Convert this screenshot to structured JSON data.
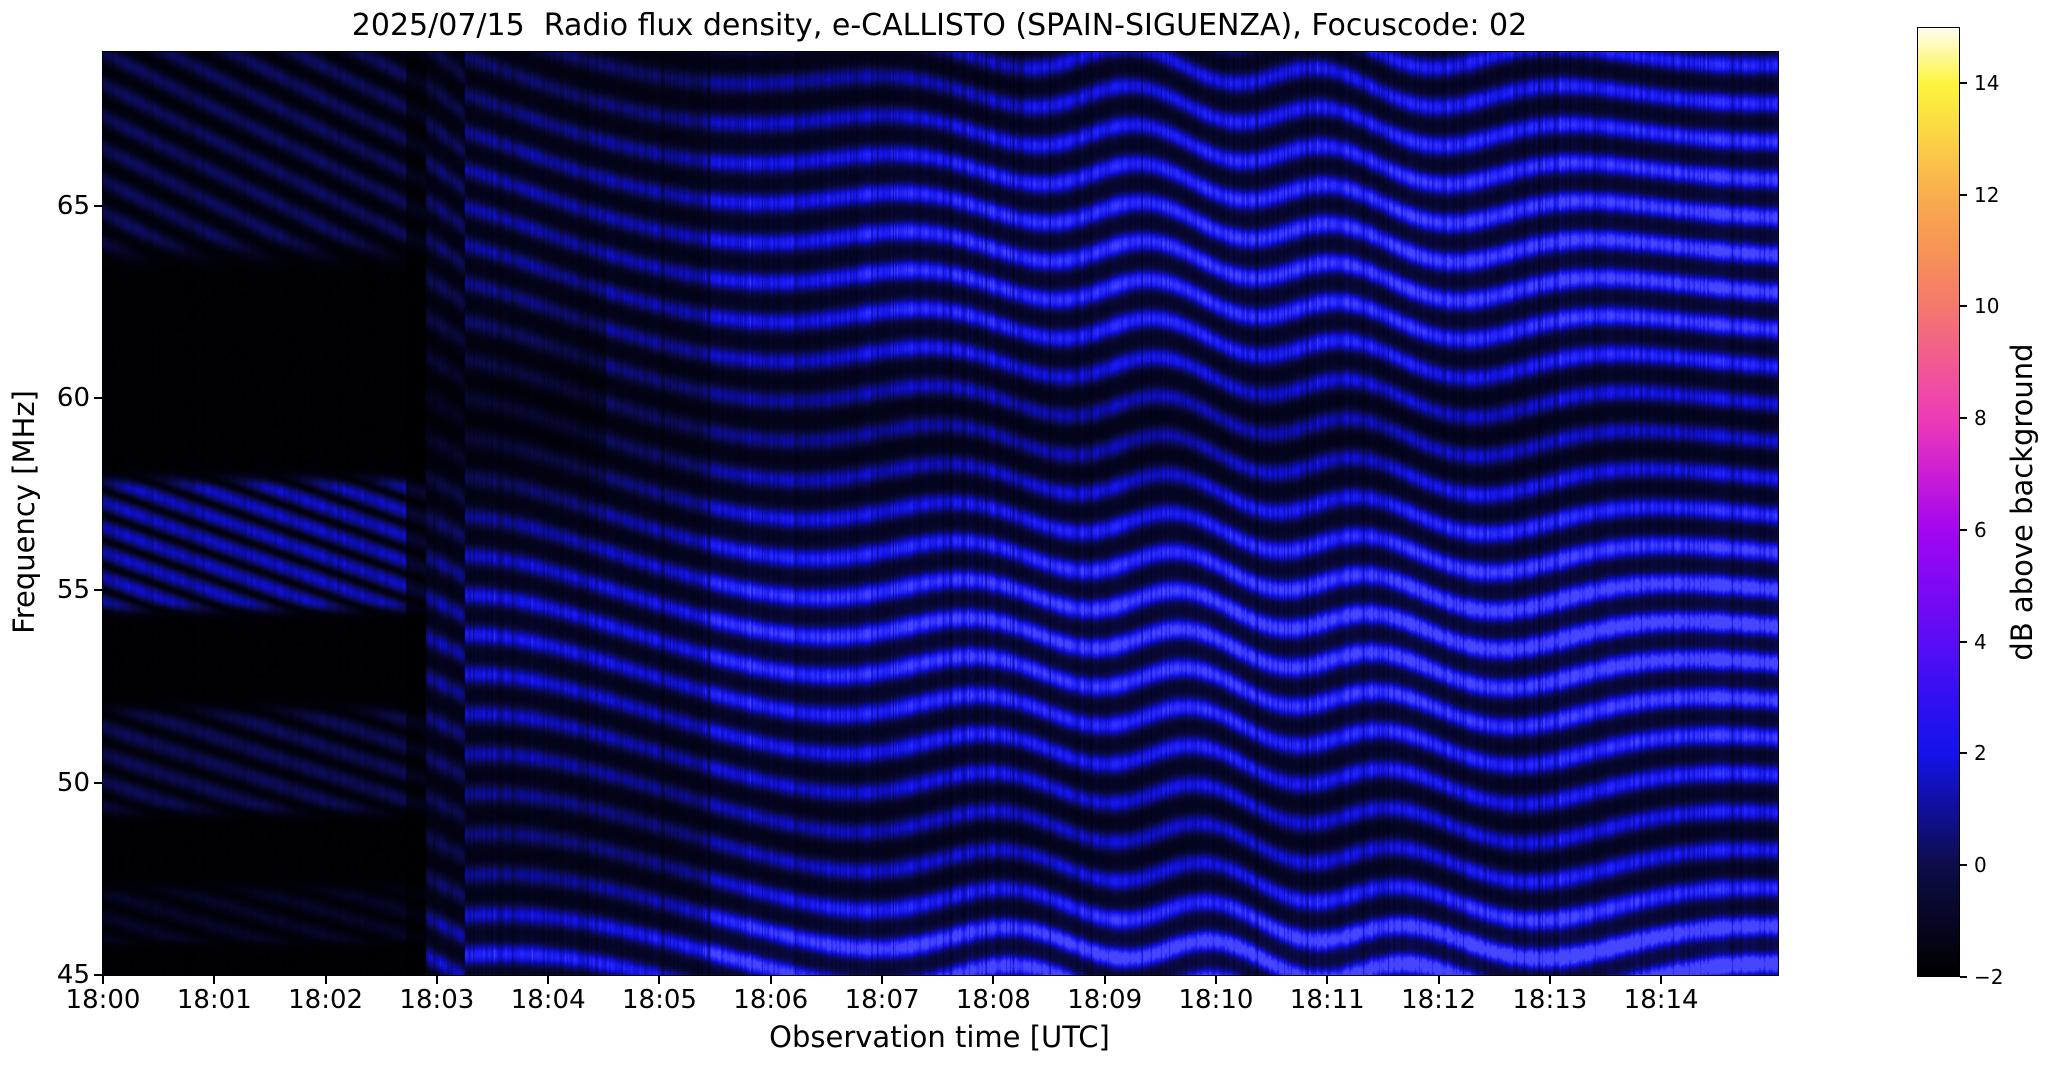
{
  "figure": {
    "title": "2025/07/15  Radio flux density, e-CALLISTO (SPAIN-SIGUENZA), Focuscode: 02",
    "background": "#ffffff"
  },
  "chart_data": {
    "type": "heatmap",
    "title": "2025/07/15  Radio flux density, e-CALLISTO (SPAIN-SIGUENZA), Focuscode: 02",
    "xlabel": "Observation time [UTC]",
    "ylabel": "Frequency [MHz]",
    "x_ticks": [
      "18:00",
      "18:01",
      "18:02",
      "18:03",
      "18:04",
      "18:05",
      "18:06",
      "18:07",
      "18:08",
      "18:09",
      "18:10",
      "18:11",
      "18:12",
      "18:13",
      "18:14"
    ],
    "x_total_minutes": 15.05,
    "y_ticks": [
      65,
      60,
      55,
      50,
      45
    ],
    "ylim": [
      45,
      69
    ],
    "grid": false,
    "colorbar": {
      "label": "dB above background",
      "ticks": [
        14,
        12,
        10,
        8,
        6,
        4,
        2,
        0,
        -2
      ],
      "range": [
        -2,
        15
      ],
      "colormap": "gnuplot2",
      "stops": [
        {
          "v": -2,
          "c": "#000000"
        },
        {
          "v": -1,
          "c": "#060624"
        },
        {
          "v": 0,
          "c": "#0d0d4a"
        },
        {
          "v": 1,
          "c": "#10109a"
        },
        {
          "v": 2,
          "c": "#1413ea"
        },
        {
          "v": 3,
          "c": "#330ff2"
        },
        {
          "v": 4,
          "c": "#5a0df5"
        },
        {
          "v": 5,
          "c": "#7f08f4"
        },
        {
          "v": 6,
          "c": "#a306f0"
        },
        {
          "v": 7,
          "c": "#cb1dd6"
        },
        {
          "v": 8,
          "c": "#ee3bb5"
        },
        {
          "v": 9,
          "c": "#f15a92"
        },
        {
          "v": 10,
          "c": "#f4786e"
        },
        {
          "v": 11,
          "c": "#f79356"
        },
        {
          "v": 12,
          "c": "#f9ad4e"
        },
        {
          "v": 13,
          "c": "#fbd245"
        },
        {
          "v": 14,
          "c": "#fcf53c"
        },
        {
          "v": 15,
          "c": "#fffdf0"
        }
      ]
    },
    "plot_colormap": [
      {
        "v": -2,
        "c": "#000000"
      },
      {
        "v": -1,
        "c": "#04041e"
      },
      {
        "v": 0,
        "c": "#0b0b47"
      },
      {
        "v": 1,
        "c": "#0b0b9e"
      },
      {
        "v": 2,
        "c": "#1414e8"
      },
      {
        "v": 3,
        "c": "#2c2cff"
      },
      {
        "v": 3.6,
        "c": "#4646ff"
      }
    ],
    "spectrogram": {
      "description": "Dynamic radio spectrum: dark calibration-like segment with banded diagonal fringes before ~18:03, then bright blue wavy ripple bands (~0.5-3 dB) drifting across 45-69 MHz until 18:15.",
      "value_range_db": [
        -2,
        3
      ],
      "ripple_spacing_px": 38.5,
      "segments": [
        {
          "from_min": 0.0,
          "to_min": 2.72,
          "style": "dark-banded"
        },
        {
          "from_min": 2.72,
          "to_min": 2.9,
          "style": "gap"
        },
        {
          "from_min": 2.9,
          "to_min": 3.25,
          "style": "transition"
        },
        {
          "from_min": 3.25,
          "to_min": 5.45,
          "style": "medium-ripples"
        },
        {
          "from_min": 5.45,
          "to_min": 15.05,
          "style": "bright-ripples"
        }
      ],
      "left_bands_mhz": [
        [
          63.9,
          69.0
        ],
        [
          54.6,
          57.9
        ],
        [
          49.2,
          51.9
        ],
        [
          45.8,
          47.3
        ]
      ],
      "bright_lanes_mhz": [
        54.0,
        45.5,
        63.5
      ],
      "dark_lanes_mhz": [
        59.3,
        48.7,
        68.4
      ]
    }
  }
}
